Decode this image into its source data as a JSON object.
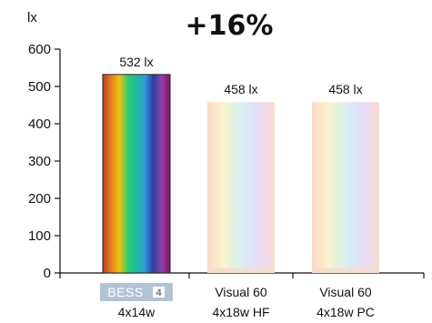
{
  "chart_data": {
    "type": "bar",
    "title": "+16%",
    "ylabel": "lx",
    "ylim": [
      0,
      600
    ],
    "yticks": [
      0,
      100,
      200,
      300,
      400,
      500,
      600
    ],
    "grid": false,
    "categories": [
      {
        "line1": "BESS",
        "line1_badge": "4",
        "line2": "4x14w",
        "line1_is_logo": true
      },
      {
        "line1": "Visual 60",
        "line2": "4x18w HF"
      },
      {
        "line1": "Visual 60",
        "line2": "4x18w PC"
      }
    ],
    "values": [
      532,
      458,
      458
    ],
    "data_labels": [
      "532 lx",
      "458 lx",
      "458 lx"
    ],
    "bar_styles": [
      "spectrum-saturated",
      "spectrum-pastel",
      "spectrum-pastel"
    ],
    "colors": {
      "spectrum": [
        "#c0392b",
        "#e67e22",
        "#f1c40f",
        "#2ecc71",
        "#1abc9c",
        "#3498db",
        "#2c3e9f",
        "#8e44ad",
        "#8a0f5e"
      ],
      "pastel": [
        "#f9d9c9",
        "#fbe7c8",
        "#fbf3d0",
        "#e3f2dc",
        "#dbeff0",
        "#d9e6f6",
        "#e4ddf2",
        "#f3d9ea",
        "#f7dccf"
      ],
      "logo_bg": "#b3c3d5",
      "axis": "#111111"
    }
  }
}
